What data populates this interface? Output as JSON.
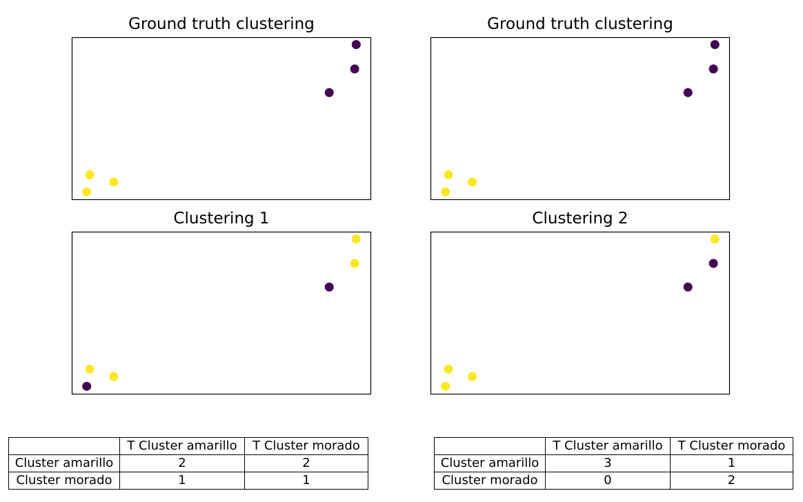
{
  "colors": {
    "purple": "#440154",
    "yellow": "#fde725"
  },
  "chart_data": [
    {
      "type": "scatter",
      "title": "Ground truth clustering",
      "xlim": [
        0,
        10
      ],
      "ylim": [
        0,
        10
      ],
      "grid": false,
      "axes_ticks": false,
      "points": [
        {
          "x": 0.5,
          "y": 0.5,
          "cluster": "yellow"
        },
        {
          "x": 0.6,
          "y": 1.55,
          "cluster": "yellow"
        },
        {
          "x": 1.4,
          "y": 1.1,
          "cluster": "yellow"
        },
        {
          "x": 8.6,
          "y": 6.6,
          "cluster": "purple"
        },
        {
          "x": 9.45,
          "y": 8.05,
          "cluster": "purple"
        },
        {
          "x": 9.5,
          "y": 9.55,
          "cluster": "purple"
        }
      ]
    },
    {
      "type": "scatter",
      "title": "Ground truth clustering",
      "xlim": [
        0,
        10
      ],
      "ylim": [
        0,
        10
      ],
      "grid": false,
      "axes_ticks": false,
      "points": [
        {
          "x": 0.5,
          "y": 0.5,
          "cluster": "yellow"
        },
        {
          "x": 0.6,
          "y": 1.55,
          "cluster": "yellow"
        },
        {
          "x": 1.4,
          "y": 1.1,
          "cluster": "yellow"
        },
        {
          "x": 8.6,
          "y": 6.6,
          "cluster": "purple"
        },
        {
          "x": 9.45,
          "y": 8.05,
          "cluster": "purple"
        },
        {
          "x": 9.5,
          "y": 9.55,
          "cluster": "purple"
        }
      ]
    },
    {
      "type": "scatter",
      "title": "Clustering 1",
      "xlim": [
        0,
        10
      ],
      "ylim": [
        0,
        10
      ],
      "grid": false,
      "axes_ticks": false,
      "points": [
        {
          "x": 0.5,
          "y": 0.5,
          "cluster": "purple"
        },
        {
          "x": 0.6,
          "y": 1.55,
          "cluster": "yellow"
        },
        {
          "x": 1.4,
          "y": 1.1,
          "cluster": "yellow"
        },
        {
          "x": 8.6,
          "y": 6.6,
          "cluster": "purple"
        },
        {
          "x": 9.45,
          "y": 8.05,
          "cluster": "yellow"
        },
        {
          "x": 9.5,
          "y": 9.55,
          "cluster": "yellow"
        }
      ]
    },
    {
      "type": "scatter",
      "title": "Clustering 2",
      "xlim": [
        0,
        10
      ],
      "ylim": [
        0,
        10
      ],
      "grid": false,
      "axes_ticks": false,
      "points": [
        {
          "x": 0.5,
          "y": 0.5,
          "cluster": "yellow"
        },
        {
          "x": 0.6,
          "y": 1.55,
          "cluster": "yellow"
        },
        {
          "x": 1.4,
          "y": 1.1,
          "cluster": "yellow"
        },
        {
          "x": 8.6,
          "y": 6.6,
          "cluster": "purple"
        },
        {
          "x": 9.45,
          "y": 8.05,
          "cluster": "purple"
        },
        {
          "x": 9.5,
          "y": 9.55,
          "cluster": "yellow"
        }
      ]
    },
    {
      "type": "table",
      "columns": [
        "",
        "T Cluster amarillo",
        "T Cluster morado"
      ],
      "rows": [
        [
          "Cluster amarillo",
          "2",
          "2"
        ],
        [
          "Cluster morado",
          "1",
          "1"
        ]
      ]
    },
    {
      "type": "table",
      "columns": [
        "",
        "T Cluster amarillo",
        "T Cluster morado"
      ],
      "rows": [
        [
          "Cluster amarillo",
          "3",
          "1"
        ],
        [
          "Cluster morado",
          "0",
          "2"
        ]
      ]
    }
  ]
}
